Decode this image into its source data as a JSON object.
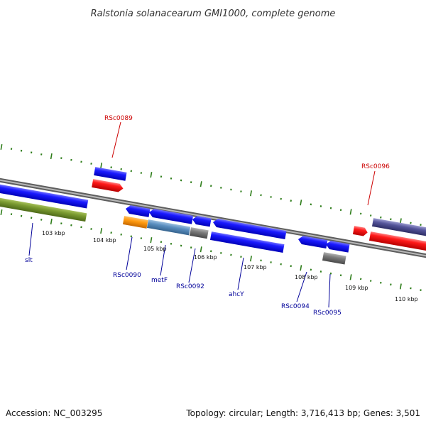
{
  "title": "Ralstonia solanacearum GMI1000, complete genome",
  "footer": {
    "accession": "Accession: NC_003295",
    "summary": "Topology: circular; Length: 3,716,413 bp; Genes: 3,501"
  },
  "colors": {
    "label_red": "#cc0000",
    "label_blue": "#000099",
    "tick_green": "#2e7d1a",
    "backbone": "#8a8a8a"
  },
  "ticks": [
    {
      "label": "103 kbp"
    },
    {
      "label": "104 kbp"
    },
    {
      "label": "105 kbp"
    },
    {
      "label": "106 kbp"
    },
    {
      "label": "107 kbp"
    },
    {
      "label": "108 kbp"
    },
    {
      "label": "109 kbp"
    },
    {
      "label": "110 kbp"
    }
  ],
  "gene_labels": [
    {
      "text": "RSc0089",
      "color": "red"
    },
    {
      "text": "RSc0096",
      "color": "red"
    },
    {
      "text": "slt",
      "color": "blue"
    },
    {
      "text": "RSc0090",
      "color": "blue"
    },
    {
      "text": "metF",
      "color": "blue"
    },
    {
      "text": "RSc0092",
      "color": "blue"
    },
    {
      "text": "ahcY",
      "color": "blue"
    },
    {
      "text": "RSc0094",
      "color": "blue"
    },
    {
      "text": "RSc0095",
      "color": "blue"
    }
  ]
}
